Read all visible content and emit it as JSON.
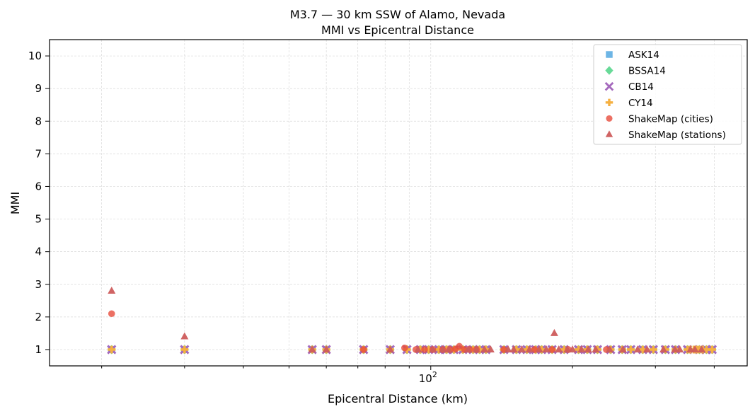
{
  "chart_data": {
    "type": "scatter",
    "title": "M3.7 — 30 km SSW of Alamo, Nevada",
    "subtitle": "MMI vs Epicentral Distance",
    "xlabel": "Epicentral Distance (km)",
    "ylabel": "MMI",
    "xscale": "log",
    "xlim": [
      15.5,
      470
    ],
    "ylim": [
      0.5,
      10.5
    ],
    "x_ticks": [
      {
        "value": 100,
        "base": "10",
        "exp": "2"
      }
    ],
    "y_ticks": [
      1,
      2,
      3,
      4,
      5,
      6,
      7,
      8,
      9,
      10
    ],
    "grid": true,
    "legend_position": "top-right",
    "series": [
      {
        "name": "ASK14",
        "marker": "square",
        "color": "#5dade2",
        "x": [
          21,
          30,
          56,
          60,
          72,
          82,
          89,
          95,
          99,
          104,
          108,
          112,
          117,
          123,
          127,
          131,
          143,
          152,
          160,
          167,
          172,
          181,
          192,
          206,
          215,
          226,
          241,
          255,
          266,
          282,
          297,
          315,
          331,
          351,
          372,
          385,
          396
        ],
        "y": [
          1,
          1,
          1,
          1,
          1,
          1,
          1,
          1,
          1,
          1,
          1,
          1,
          1,
          1,
          1,
          1,
          1,
          1,
          1,
          1,
          1,
          1,
          1,
          1,
          1,
          1,
          1,
          1,
          1,
          1,
          1,
          1,
          1,
          1,
          1,
          1,
          1
        ]
      },
      {
        "name": "BSSA14",
        "marker": "diamond",
        "color": "#58d68d",
        "x": [
          21,
          30,
          56,
          60,
          72,
          82,
          89,
          95,
          99,
          104,
          108,
          112,
          117,
          123,
          127,
          131,
          143,
          152,
          160,
          167,
          172,
          181,
          192,
          206,
          215,
          226,
          241,
          255,
          266,
          282,
          297,
          315,
          331,
          351,
          372,
          385,
          396
        ],
        "y": [
          1,
          1,
          1,
          1,
          1,
          1,
          1,
          1,
          1,
          1,
          1,
          1,
          1,
          1,
          1,
          1,
          1,
          1,
          1,
          1,
          1,
          1,
          1,
          1,
          1,
          1,
          1,
          1,
          1,
          1,
          1,
          1,
          1,
          1,
          1,
          1,
          1
        ]
      },
      {
        "name": "CB14",
        "marker": "x",
        "color": "#a569bd",
        "x": [
          21,
          30,
          56,
          60,
          72,
          82,
          89,
          95,
          99,
          104,
          108,
          112,
          117,
          123,
          127,
          131,
          143,
          152,
          160,
          167,
          172,
          181,
          192,
          206,
          215,
          226,
          241,
          255,
          266,
          282,
          297,
          315,
          331,
          351,
          372,
          385,
          396
        ],
        "y": [
          1,
          1,
          1,
          1,
          1,
          1,
          1,
          1,
          1,
          1,
          1,
          1,
          1,
          1,
          1,
          1,
          1,
          1,
          1,
          1,
          1,
          1,
          1,
          1,
          1,
          1,
          1,
          1,
          1,
          1,
          1,
          1,
          1,
          1,
          1,
          1,
          1
        ]
      },
      {
        "name": "CY14",
        "marker": "plus",
        "color": "#f5b041",
        "x": [
          21,
          30,
          56,
          60,
          72,
          82,
          89,
          95,
          99,
          104,
          108,
          112,
          117,
          123,
          127,
          131,
          143,
          152,
          160,
          167,
          172,
          181,
          192,
          206,
          215,
          226,
          241,
          255,
          266,
          282,
          297,
          315,
          331,
          351,
          356,
          362,
          367,
          372,
          378,
          385,
          396
        ],
        "y": [
          1,
          1,
          1,
          1,
          1,
          1,
          1,
          1,
          1,
          1,
          1,
          1,
          1,
          1,
          1,
          1,
          1,
          1,
          1,
          1,
          1,
          1,
          1,
          1,
          1,
          1,
          1,
          1,
          1,
          1,
          1,
          1,
          1,
          1,
          1,
          1,
          1,
          1,
          1,
          1,
          1
        ]
      },
      {
        "name": "ShakeMap (cities)",
        "marker": "circle",
        "color": "#e74c3c",
        "x": [
          21,
          72,
          88,
          93,
          97,
          101,
          106,
          110,
          113,
          115,
          118,
          121,
          125,
          143,
          166,
          181,
          196,
          236
        ],
        "y": [
          2.1,
          1,
          1.05,
          1,
          1,
          1,
          1,
          1,
          1.02,
          1.1,
          1,
          1,
          1,
          1,
          1,
          1,
          1,
          1
        ],
        "alpha": 0.8
      },
      {
        "name": "ShakeMap (stations)",
        "marker": "triangle",
        "color": "#cd5c5c",
        "x": [
          21,
          30,
          56,
          60,
          82,
          94,
          101,
          106,
          109,
          120,
          125,
          130,
          134,
          146,
          150,
          156,
          162,
          170,
          176,
          183,
          187,
          195,
          200,
          209,
          216,
          224,
          240,
          256,
          275,
          288,
          312,
          330,
          338,
          356,
          364,
          376
        ],
        "y": [
          2.8,
          1.4,
          1,
          1,
          1,
          1,
          1,
          1,
          1,
          1,
          1,
          1,
          1,
          1,
          1,
          1,
          1,
          1,
          1,
          1.5,
          1,
          1,
          1,
          1,
          1,
          1,
          1,
          1,
          1,
          1,
          1,
          1,
          1,
          1,
          1,
          1
        ]
      }
    ]
  }
}
